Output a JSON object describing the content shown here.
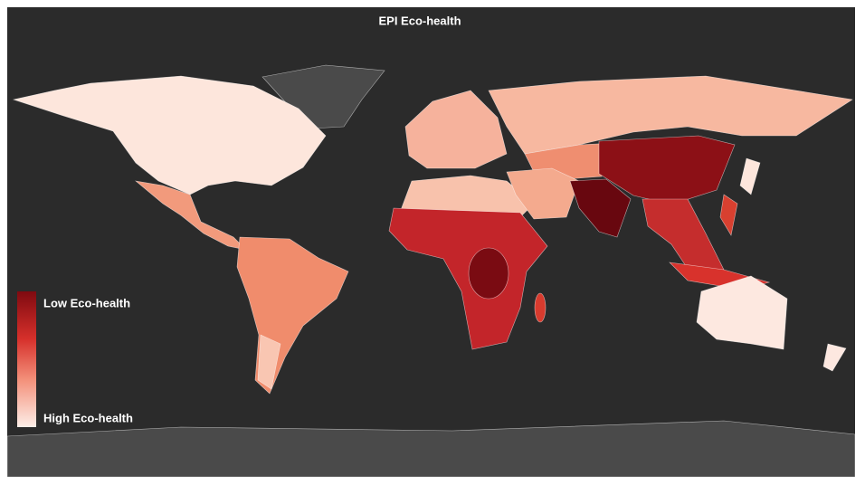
{
  "title": "EPI Eco-health",
  "legend": {
    "top_label": "Low Eco-health",
    "bottom_label": "High Eco-health"
  }
}
